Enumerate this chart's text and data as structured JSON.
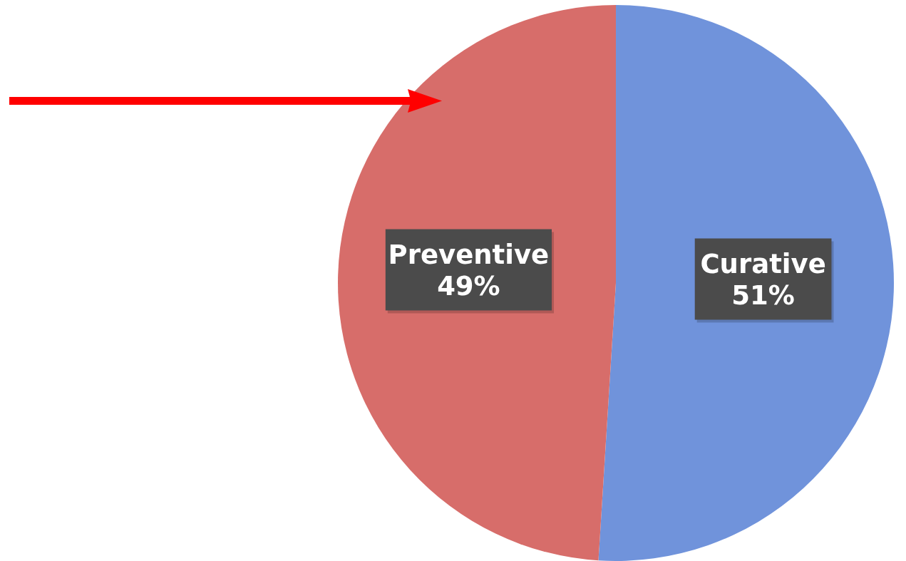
{
  "chart_data": {
    "type": "pie",
    "categories": [
      "Curative",
      "Preventive"
    ],
    "values": [
      51,
      49
    ],
    "colors": [
      "#7093db",
      "#d76d6a"
    ],
    "value_labels": [
      "51%",
      "49%"
    ],
    "legend": false
  }
}
